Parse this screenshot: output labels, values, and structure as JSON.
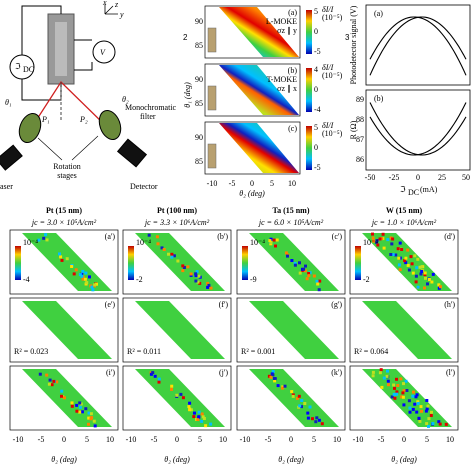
{
  "fig_numbers": [
    "2",
    "3"
  ],
  "schematic": {
    "x": "x",
    "z": "z",
    "y": "y",
    "source": "ℑ",
    "source_sub": "DC",
    "meter": "V",
    "theta1": "θ₁",
    "theta2": "θ₂",
    "p1": "P₁",
    "p2": "P₂",
    "laser": "aser",
    "filter": [
      "Monochromatic",
      "filter"
    ],
    "stages": [
      "Rotation",
      "stages"
    ],
    "detector": "Detector"
  },
  "moke": {
    "panels": [
      {
        "tag": "(a)",
        "mode": "L-MOKE",
        "pol": "σz ∥ y",
        "cbar": [
          "5",
          "0",
          "-5"
        ]
      },
      {
        "tag": "(b)",
        "mode": "T-MOKE",
        "pol": "σz ∥ x",
        "cbar": [
          "4",
          "0",
          "-4"
        ]
      },
      {
        "tag": "(c)",
        "cbar": [
          "5",
          "0",
          "-5"
        ]
      }
    ],
    "cbar_title": "δI/I",
    "cbar_unit": "(10⁻⁵)",
    "ylabel": "θ₁ (deg)",
    "yticks": [
      "90",
      "85"
    ],
    "xlabel": "θ₂ (deg)",
    "xticks": [
      "-10",
      "-5",
      "0",
      "5",
      "10"
    ]
  },
  "signal": {
    "tags": [
      "(a)",
      "(b)"
    ],
    "ylabel_a": "Photodetector signal (V)",
    "ylabel_b": "R (Ω)",
    "yticks_b": [
      "89",
      "88",
      "87",
      "86"
    ],
    "xlabel": "ℑ",
    "xlabel_sub": "DC",
    "xlabel_unit": "(mA)",
    "xticks": [
      "-50",
      "-25",
      "0",
      "25",
      "50"
    ]
  },
  "grid": {
    "columns": [
      {
        "title": "Pt (15 nm)",
        "jc": "jc = 3.0 × 10⁵A/cm²",
        "cbar": [
          "10⁻⁴",
          "-4"
        ],
        "r2": "R² = 0.023",
        "tags": [
          "(a')",
          "(e')",
          "(i')"
        ]
      },
      {
        "title": "Pt (100 nm)",
        "jc": "jc = 3.3 × 10⁶A/cm²",
        "cbar": [
          "10⁻⁴",
          "-2"
        ],
        "r2": "R² = 0.011",
        "tags": [
          "(b')",
          "(f')",
          "(j')"
        ]
      },
      {
        "title": "Ta (15 nm)",
        "jc": "jc = 6.0 × 10⁵A/cm²",
        "cbar": [
          "10⁻⁴",
          "-9"
        ],
        "r2": "R² = 0.001",
        "tags": [
          "(c')",
          "(g')",
          "(k')"
        ]
      },
      {
        "title": "W (15 nm)",
        "jc": "jc = 1.0 × 10⁶A/cm²",
        "cbar": [
          "10⁻⁴",
          "-2"
        ],
        "r2": "R² = 0.064",
        "tags": [
          "(d')",
          "(h')",
          "(l')"
        ]
      }
    ],
    "xlabel": "θ₂ (deg)",
    "xticks": [
      "-10",
      "-5",
      "0",
      "5",
      "10"
    ]
  }
}
